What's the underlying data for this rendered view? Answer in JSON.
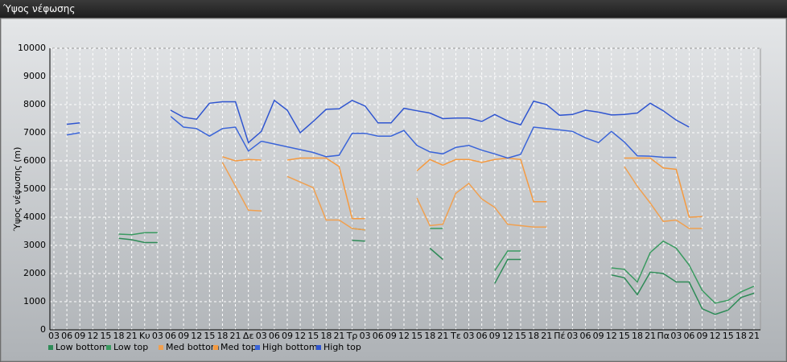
{
  "chart_data": {
    "type": "line",
    "title": "Ύψος νέφωσης",
    "ylabel": "Ύψος νέφωσης (m)",
    "categories": [
      "03",
      "06",
      "09",
      "12",
      "15",
      "18",
      "21",
      "Κυ",
      "03",
      "06",
      "09",
      "12",
      "15",
      "18",
      "21",
      "Δε",
      "03",
      "06",
      "09",
      "12",
      "15",
      "18",
      "21",
      "Τρ",
      "03",
      "06",
      "09",
      "12",
      "15",
      "18",
      "21",
      "Τε",
      "03",
      "06",
      "09",
      "12",
      "15",
      "18",
      "21",
      "Πέ",
      "03",
      "06",
      "09",
      "12",
      "15",
      "18",
      "21",
      "Πα",
      "03",
      "06",
      "09",
      "12",
      "15",
      "18",
      "21"
    ],
    "ylim": [
      0,
      10000
    ],
    "yticks": [
      0,
      1000,
      2000,
      3000,
      4000,
      5000,
      6000,
      7000,
      8000,
      9000,
      10000
    ],
    "grid": true,
    "series": [
      {
        "name": "Low bottom",
        "color": "#2e8b57",
        "values": [
          null,
          null,
          null,
          null,
          null,
          3250,
          3200,
          3100,
          3100,
          null,
          null,
          null,
          null,
          null,
          null,
          null,
          null,
          null,
          null,
          null,
          null,
          null,
          null,
          3180,
          3150,
          null,
          null,
          null,
          null,
          2900,
          2500,
          null,
          null,
          null,
          1650,
          2500,
          2500,
          null,
          null,
          null,
          null,
          null,
          null,
          1950,
          1850,
          1250,
          2050,
          2000,
          1700,
          1700,
          750,
          550,
          700,
          1150,
          1300
        ]
      },
      {
        "name": "Low top",
        "color": "#3a9a60",
        "values": [
          null,
          null,
          null,
          null,
          null,
          3400,
          3380,
          3450,
          3450,
          null,
          null,
          null,
          null,
          null,
          null,
          null,
          null,
          null,
          null,
          null,
          null,
          null,
          null,
          3600,
          3550,
          null,
          null,
          null,
          null,
          3600,
          3600,
          null,
          null,
          null,
          2100,
          2800,
          2800,
          null,
          null,
          null,
          null,
          null,
          null,
          2200,
          2150,
          1700,
          2750,
          3150,
          2900,
          2300,
          1400,
          950,
          1050,
          1350,
          1550
        ]
      },
      {
        "name": "Med bottom",
        "color": "#f0a050",
        "values": [
          null,
          null,
          null,
          null,
          null,
          null,
          null,
          null,
          null,
          null,
          null,
          null,
          null,
          5950,
          5100,
          4250,
          4220,
          null,
          5450,
          5250,
          5050,
          3900,
          3900,
          3600,
          3550,
          null,
          null,
          null,
          4680,
          3700,
          3750,
          4850,
          5200,
          4650,
          4350,
          3750,
          3700,
          3650,
          3650,
          null,
          null,
          null,
          null,
          null,
          5800,
          5100,
          4500,
          3850,
          3900,
          3600,
          3600,
          null,
          null,
          null,
          null
        ]
      },
      {
        "name": "Med top",
        "color": "#f59a40",
        "values": [
          null,
          null,
          null,
          null,
          null,
          null,
          null,
          null,
          null,
          null,
          null,
          null,
          null,
          6150,
          6000,
          6050,
          6030,
          null,
          6030,
          6100,
          6100,
          6100,
          5800,
          3950,
          3950,
          null,
          null,
          null,
          5650,
          6050,
          5850,
          6050,
          6050,
          5950,
          6050,
          6100,
          6050,
          4550,
          4550,
          null,
          null,
          null,
          null,
          null,
          6100,
          6100,
          6100,
          5750,
          5700,
          4000,
          4020,
          null,
          null,
          null,
          null
        ]
      },
      {
        "name": "High bottom",
        "color": "#3a64d8",
        "values": [
          null,
          6920,
          7000,
          null,
          null,
          null,
          null,
          null,
          null,
          7580,
          7200,
          7150,
          6880,
          7150,
          7200,
          6350,
          6700,
          6600,
          6500,
          6400,
          6300,
          6150,
          6200,
          6980,
          6980,
          6880,
          6880,
          7080,
          6550,
          6320,
          6250,
          6480,
          6550,
          6380,
          6250,
          6100,
          6230,
          7200,
          7150,
          7100,
          7050,
          6820,
          6650,
          7050,
          6670,
          6180,
          6170,
          6130,
          6120,
          null,
          null,
          null,
          null,
          null,
          null
        ]
      },
      {
        "name": "High top",
        "color": "#2f55d0",
        "values": [
          null,
          7300,
          7350,
          null,
          null,
          null,
          null,
          null,
          null,
          7800,
          7550,
          7480,
          8050,
          8100,
          8100,
          6650,
          7050,
          8150,
          7800,
          7000,
          7400,
          7830,
          7850,
          8150,
          7950,
          7350,
          7350,
          7870,
          7780,
          7700,
          7500,
          7520,
          7520,
          7400,
          7650,
          7420,
          7280,
          8120,
          8000,
          7620,
          7650,
          7800,
          7730,
          7630,
          7650,
          7700,
          8050,
          7780,
          7450,
          7200,
          null,
          null,
          null,
          null,
          null
        ]
      }
    ]
  }
}
